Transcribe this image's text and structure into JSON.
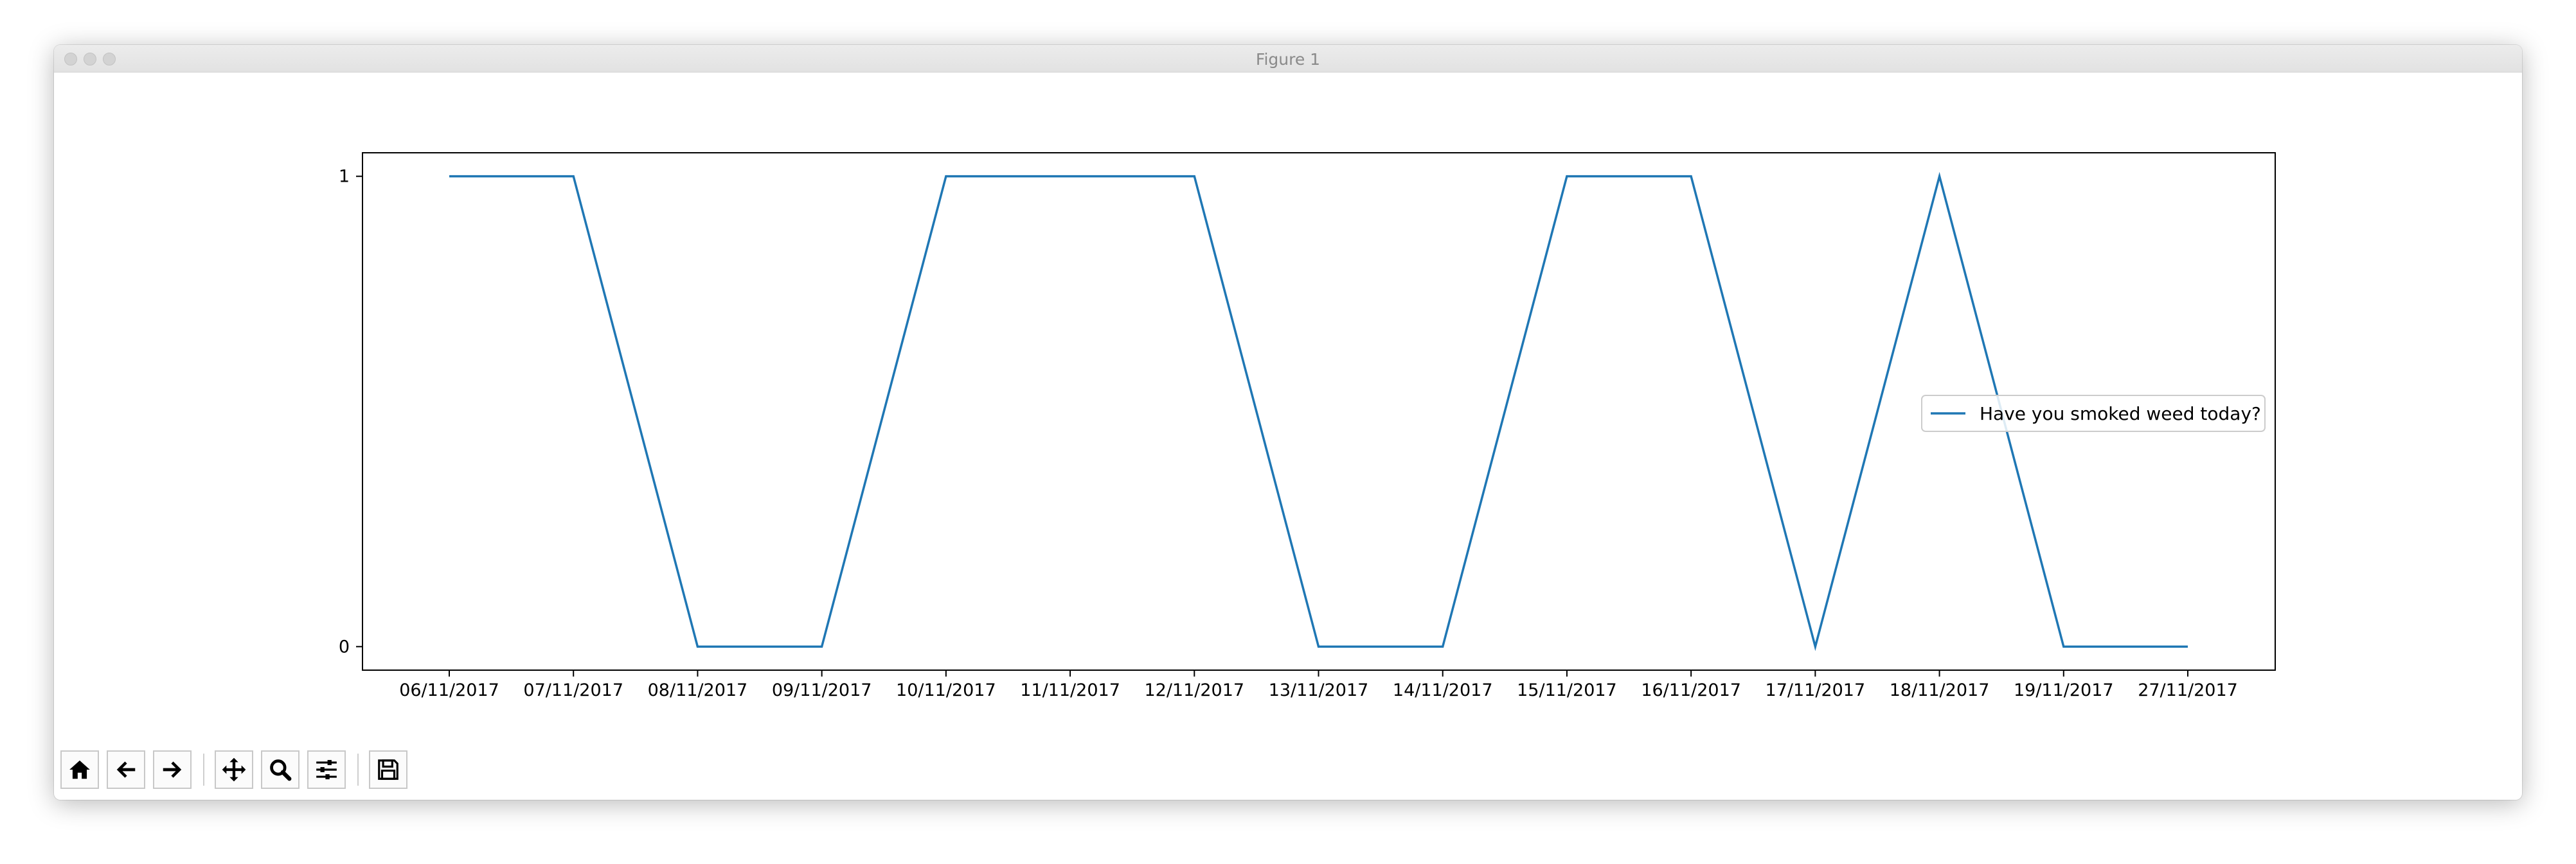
{
  "window": {
    "title": "Figure 1"
  },
  "toolbar": {
    "buttons": [
      {
        "icon": "home-icon"
      },
      {
        "icon": "arrow-left-icon"
      },
      {
        "icon": "arrow-right-icon"
      },
      {
        "icon": "move-icon"
      },
      {
        "icon": "zoom-icon"
      },
      {
        "icon": "sliders-icon"
      },
      {
        "icon": "save-icon"
      }
    ]
  },
  "chart_data": {
    "type": "line",
    "x": [
      "06/11/2017",
      "07/11/2017",
      "08/11/2017",
      "09/11/2017",
      "10/11/2017",
      "11/11/2017",
      "12/11/2017",
      "13/11/2017",
      "14/11/2017",
      "15/11/2017",
      "16/11/2017",
      "17/11/2017",
      "18/11/2017",
      "19/11/2017",
      "27/11/2017"
    ],
    "series": [
      {
        "name": "Have you smoked weed today?",
        "values": [
          1,
          1,
          0,
          0,
          1,
          1,
          1,
          0,
          0,
          1,
          1,
          0,
          1,
          0,
          0
        ],
        "color": "#1f77b4"
      }
    ],
    "yticks": [
      "0",
      "1"
    ],
    "ylim": [
      -0.05,
      1.05
    ],
    "grid": false,
    "legend_position": "center-right",
    "title": "",
    "xlabel": "",
    "ylabel": ""
  }
}
